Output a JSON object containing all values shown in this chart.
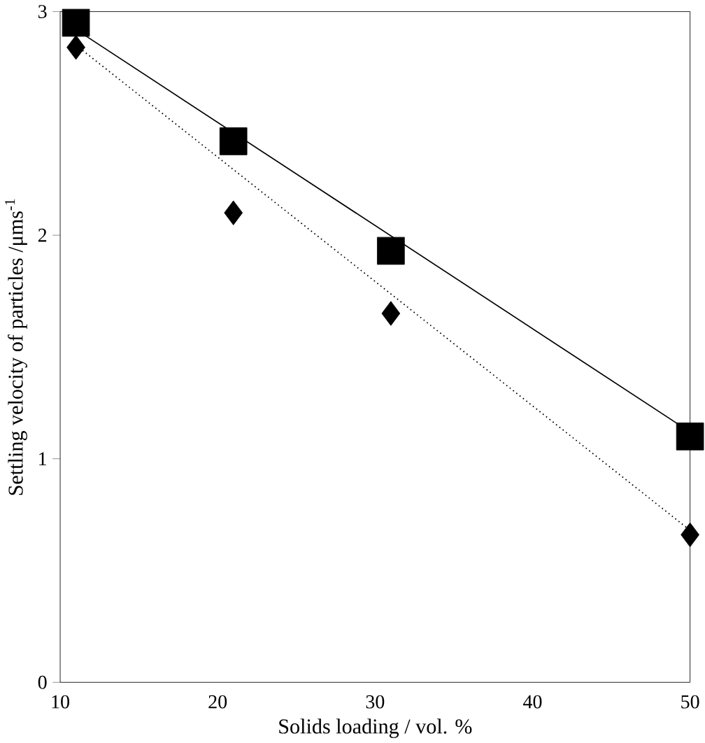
{
  "chart_data": {
    "type": "scatter",
    "xlabel": "Solids loading / vol. %",
    "ylabel": "Settling velocity of particles /μms$^{-1}$",
    "xlim": [
      10,
      50
    ],
    "ylim": [
      0,
      3
    ],
    "xticks": [
      10,
      20,
      30,
      40,
      50
    ],
    "yticks": [
      0,
      1,
      2,
      3
    ],
    "grid": false,
    "series": [
      {
        "marker": "square",
        "color": "#000000",
        "x": [
          11,
          21,
          31,
          50
        ],
        "values": [
          2.95,
          2.42,
          1.93,
          1.1
        ]
      },
      {
        "marker": "diamond",
        "color": "#000000",
        "x": [
          11,
          21,
          31,
          50
        ],
        "values": [
          2.84,
          2.1,
          1.65,
          0.66
        ]
      },
      {
        "type": "line",
        "marker": "none",
        "line_style": "solid",
        "color": "#000000",
        "x": [
          11,
          50
        ],
        "values": [
          2.92,
          1.12
        ]
      },
      {
        "type": "line",
        "marker": "none",
        "line_style": "dotted",
        "color": "#000000",
        "x": [
          11,
          50
        ],
        "values": [
          2.85,
          0.68
        ]
      }
    ]
  }
}
